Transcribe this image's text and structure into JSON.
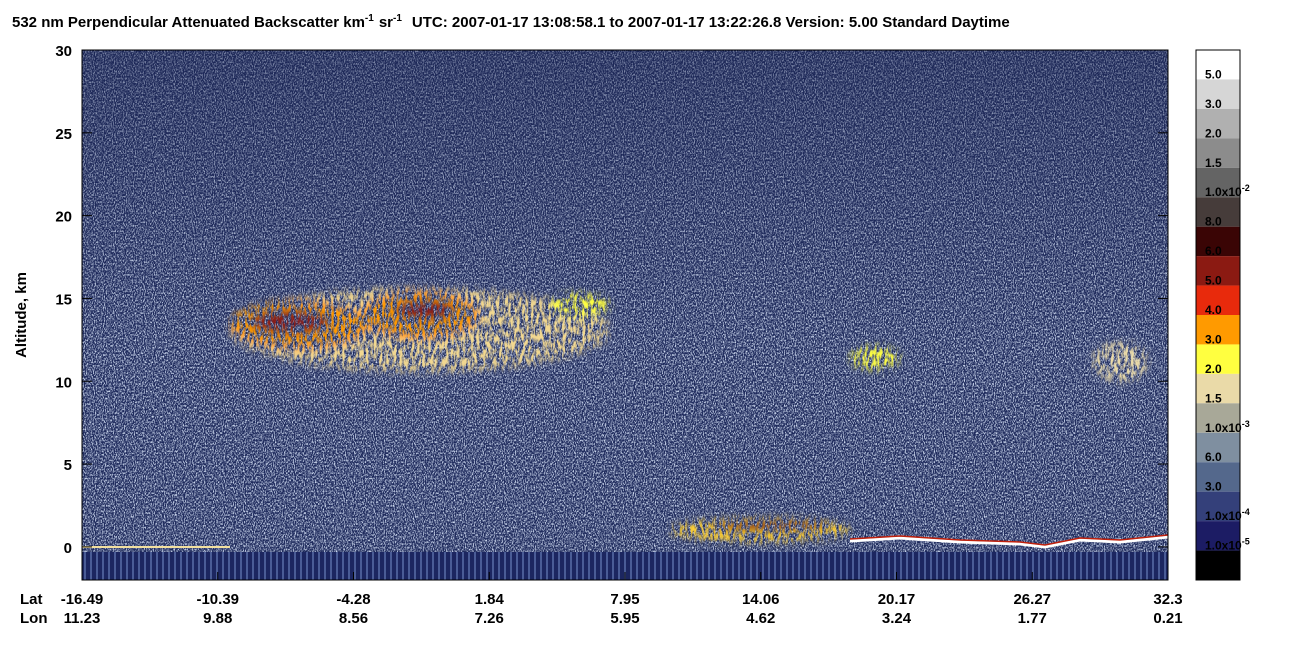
{
  "chart_data": {
    "type": "heatmap",
    "title": {
      "text": "532 nm Perpendicular Attenuated Backscatter km",
      "unit_exponent": "-1",
      "unit2": "sr",
      "unit2_exponent": "-1",
      "info": "UTC: 2007-01-17 13:08:58.1 to 2007-01-17 13:22:26.8  Version: 5.00 Standard Daytime"
    },
    "y_label": "Altitude, km",
    "ylim": [
      -2,
      30
    ],
    "yticks": [
      0,
      5,
      10,
      15,
      20,
      25,
      30
    ],
    "x_rows": [
      {
        "name": "Lat",
        "values": [
          -16.49,
          -10.39,
          -4.28,
          1.84,
          7.95,
          14.06,
          20.17,
          26.27,
          32.3
        ]
      },
      {
        "name": "Lon",
        "values": [
          11.23,
          9.88,
          8.56,
          7.26,
          5.95,
          4.62,
          3.24,
          1.77,
          0.21
        ]
      }
    ],
    "colorbar": {
      "colors": [
        "#ffffff",
        "#d6d6d6",
        "#b0b0b0",
        "#8c8c8c",
        "#646464",
        "#463c3a",
        "#3a0505",
        "#8b1a12",
        "#e82a0c",
        "#ff9a00",
        "#ffff40",
        "#eadaa8",
        "#a8a898",
        "#7f8fa0",
        "#54688c",
        "#34407a",
        "#1c1c64",
        "#000000"
      ],
      "labels": [
        "5.0",
        "3.0",
        "2.0",
        "1.5",
        {
          "base": "1.0x10",
          "exp": "-2"
        },
        "8.0",
        "6.0",
        "5.0",
        "4.0",
        "3.0",
        "2.0",
        "1.5",
        {
          "base": "1.0x10",
          "exp": "-3"
        },
        "6.0",
        "3.0",
        {
          "base": "1.0x10",
          "exp": "-4"
        },
        {
          "base": "1.0x10",
          "exp": "-5"
        }
      ]
    }
  }
}
